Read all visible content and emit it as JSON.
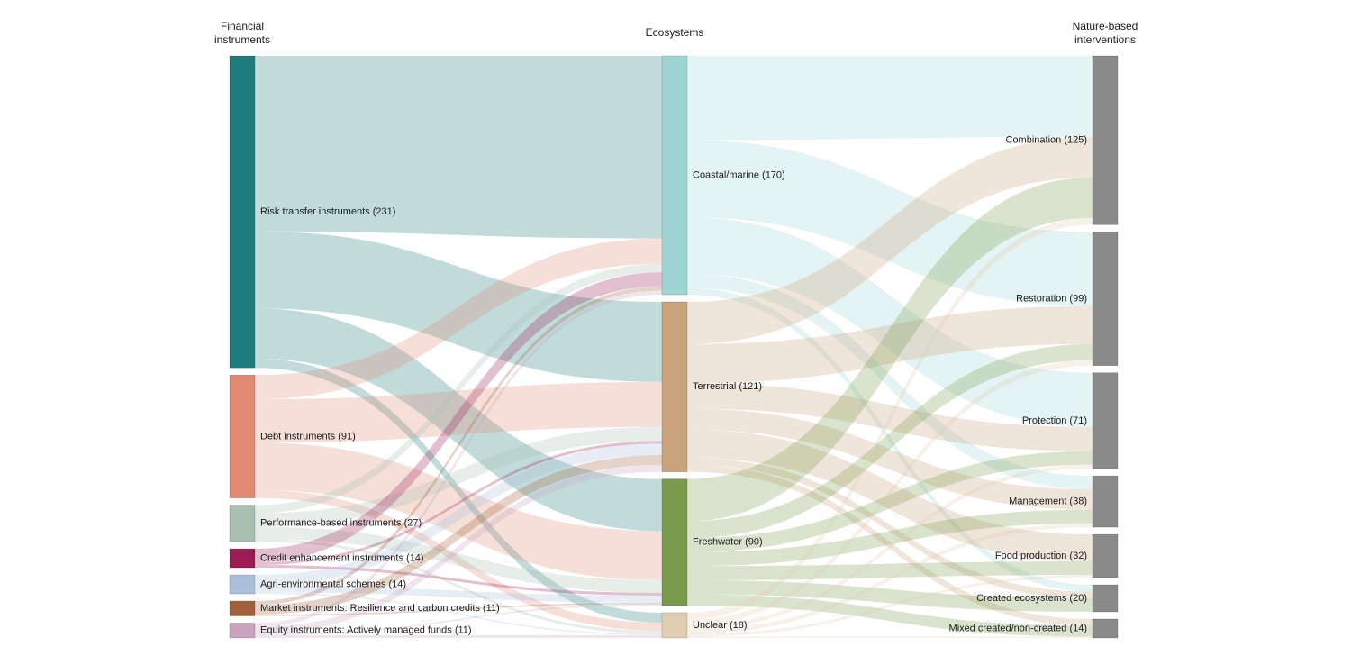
{
  "headers": {
    "left": [
      "Financial",
      "instruments"
    ],
    "middle": [
      "Ecosystems"
    ],
    "right": [
      "Nature-based",
      "interventions"
    ]
  },
  "instruments": [
    {
      "id": "risk",
      "label": "Risk transfer instruments (231)",
      "value": 231,
      "color": "#1f7c7c"
    },
    {
      "id": "debt",
      "label": "Debt instruments (91)",
      "value": 91,
      "color": "#e08b72"
    },
    {
      "id": "perf",
      "label": "Performance-based instruments (27)",
      "value": 27,
      "color": "#a9bfb0"
    },
    {
      "id": "credit",
      "label": "Credit enhancement instruments (14)",
      "value": 14,
      "color": "#9b1b55"
    },
    {
      "id": "agri",
      "label": "Agri-environmental schemes (14)",
      "value": 14,
      "color": "#a9bfdc"
    },
    {
      "id": "market",
      "label": "Market instruments: Resilience and carbon credits (11)",
      "value": 11,
      "color": "#a0603c"
    },
    {
      "id": "equity",
      "label": "Equity instruments: Actively managed funds (11)",
      "value": 11,
      "color": "#c9a2bd"
    }
  ],
  "ecosystems": [
    {
      "id": "coastal",
      "label": "Coastal/marine (170)",
      "value": 170,
      "color": "#9fd5d3"
    },
    {
      "id": "terr",
      "label": "Terrestrial (121)",
      "value": 121,
      "color": "#c9a37a"
    },
    {
      "id": "fresh",
      "label": "Freshwater (90)",
      "value": 90,
      "color": "#7a9a4c"
    },
    {
      "id": "unclear",
      "label": "Unclear (18)",
      "value": 18,
      "color": "#e0cdb1"
    }
  ],
  "interventions": [
    {
      "id": "comb",
      "label": "Combination (125)",
      "value": 125,
      "color": "#8a8a8a"
    },
    {
      "id": "rest",
      "label": "Restoration (99)",
      "value": 99,
      "color": "#8a8a8a"
    },
    {
      "id": "prot",
      "label": "Protection (71)",
      "value": 71,
      "color": "#8a8a8a"
    },
    {
      "id": "mgmt",
      "label": "Management (38)",
      "value": 38,
      "color": "#8a8a8a"
    },
    {
      "id": "food",
      "label": "Food production (32)",
      "value": 32,
      "color": "#8a8a8a"
    },
    {
      "id": "created",
      "label": "Created ecosystems (20)",
      "value": 20,
      "color": "#8a8a8a"
    },
    {
      "id": "mixed",
      "label": "Mixed created/non-created (14)",
      "value": 14,
      "color": "#8a8a8a"
    }
  ],
  "flows_instrument_ecosystem": [
    {
      "source": "risk",
      "target": "coastal",
      "value": 130
    },
    {
      "source": "risk",
      "target": "terr",
      "value": 57
    },
    {
      "source": "risk",
      "target": "fresh",
      "value": 37
    },
    {
      "source": "risk",
      "target": "unclear",
      "value": 7
    },
    {
      "source": "debt",
      "target": "coastal",
      "value": 18
    },
    {
      "source": "debt",
      "target": "terr",
      "value": 32
    },
    {
      "source": "debt",
      "target": "fresh",
      "value": 35
    },
    {
      "source": "debt",
      "target": "unclear",
      "value": 6
    },
    {
      "source": "perf",
      "target": "coastal",
      "value": 6
    },
    {
      "source": "perf",
      "target": "terr",
      "value": 10
    },
    {
      "source": "perf",
      "target": "fresh",
      "value": 9
    },
    {
      "source": "perf",
      "target": "unclear",
      "value": 2
    },
    {
      "source": "credit",
      "target": "coastal",
      "value": 10
    },
    {
      "source": "credit",
      "target": "terr",
      "value": 2
    },
    {
      "source": "credit",
      "target": "fresh",
      "value": 2
    },
    {
      "source": "agri",
      "target": "terr",
      "value": 8
    },
    {
      "source": "agri",
      "target": "fresh",
      "value": 5
    },
    {
      "source": "agri",
      "target": "unclear",
      "value": 1
    },
    {
      "source": "market",
      "target": "coastal",
      "value": 3
    },
    {
      "source": "market",
      "target": "terr",
      "value": 7
    },
    {
      "source": "market",
      "target": "fresh",
      "value": 1
    },
    {
      "source": "equity",
      "target": "coastal",
      "value": 3
    },
    {
      "source": "equity",
      "target": "terr",
      "value": 5
    },
    {
      "source": "equity",
      "target": "fresh",
      "value": 1
    },
    {
      "source": "equity",
      "target": "unclear",
      "value": 2
    }
  ],
  "flows_ecosystem_intervention": [
    {
      "source": "coastal",
      "target": "comb",
      "value": 60
    },
    {
      "source": "coastal",
      "target": "rest",
      "value": 55
    },
    {
      "source": "coastal",
      "target": "prot",
      "value": 40
    },
    {
      "source": "coastal",
      "target": "mgmt",
      "value": 10
    },
    {
      "source": "coastal",
      "target": "created",
      "value": 5
    },
    {
      "source": "terr",
      "target": "comb",
      "value": 30
    },
    {
      "source": "terr",
      "target": "rest",
      "value": 28
    },
    {
      "source": "terr",
      "target": "prot",
      "value": 18
    },
    {
      "source": "terr",
      "target": "mgmt",
      "value": 15
    },
    {
      "source": "terr",
      "target": "food",
      "value": 20
    },
    {
      "source": "terr",
      "target": "created",
      "value": 5
    },
    {
      "source": "terr",
      "target": "mixed",
      "value": 5
    },
    {
      "source": "fresh",
      "target": "comb",
      "value": 30
    },
    {
      "source": "fresh",
      "target": "rest",
      "value": 12
    },
    {
      "source": "fresh",
      "target": "prot",
      "value": 10
    },
    {
      "source": "fresh",
      "target": "mgmt",
      "value": 10
    },
    {
      "source": "fresh",
      "target": "food",
      "value": 10
    },
    {
      "source": "fresh",
      "target": "created",
      "value": 10
    },
    {
      "source": "fresh",
      "target": "mixed",
      "value": 8
    },
    {
      "source": "unclear",
      "target": "comb",
      "value": 5
    },
    {
      "source": "unclear",
      "target": "rest",
      "value": 4
    },
    {
      "source": "unclear",
      "target": "prot",
      "value": 3
    },
    {
      "source": "unclear",
      "target": "mgmt",
      "value": 3
    },
    {
      "source": "unclear",
      "target": "food",
      "value": 2
    },
    {
      "source": "unclear",
      "target": "mixed",
      "value": 1
    }
  ]
}
